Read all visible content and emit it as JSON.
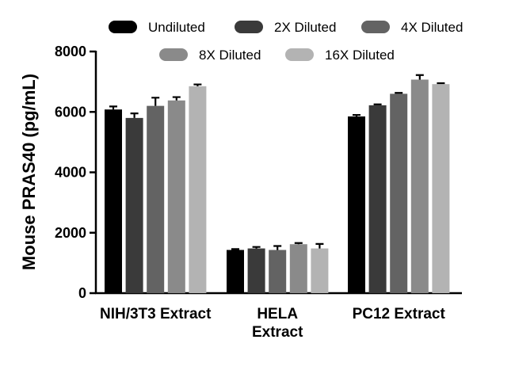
{
  "chart_data": {
    "type": "bar",
    "title": "",
    "xlabel": "",
    "ylabel": "Mouse PRAS40 (pg/mL)",
    "ylim": [
      0,
      8000
    ],
    "yticks": [
      "0",
      "2000",
      "4000",
      "6000",
      "8000"
    ],
    "ytick_values": [
      0,
      2000,
      4000,
      6000,
      8000
    ],
    "categories": [
      [
        "NIH/3T3 Extract"
      ],
      [
        "HELA",
        "Extract"
      ],
      [
        "PC12 Extract"
      ]
    ],
    "legend_placement": "top",
    "grid": false,
    "series": [
      {
        "name": "Undiluted",
        "color": "#000000",
        "values": [
          6080,
          1430,
          5850
        ],
        "errors": [
          100,
          30,
          50
        ]
      },
      {
        "name": "2X Diluted",
        "color": "#3a3a3a",
        "values": [
          5800,
          1480,
          6220
        ],
        "errors": [
          150,
          50,
          30
        ]
      },
      {
        "name": "4X Diluted",
        "color": "#636363",
        "values": [
          6200,
          1430,
          6600
        ],
        "errors": [
          270,
          130,
          30
        ]
      },
      {
        "name": "8X Diluted",
        "color": "#8a8a8a",
        "values": [
          6380,
          1620,
          7070
        ],
        "errors": [
          110,
          40,
          150
        ]
      },
      {
        "name": "16X Diluted",
        "color": "#b3b3b3",
        "values": [
          6850,
          1480,
          6920
        ],
        "errors": [
          60,
          150,
          30
        ]
      }
    ]
  }
}
